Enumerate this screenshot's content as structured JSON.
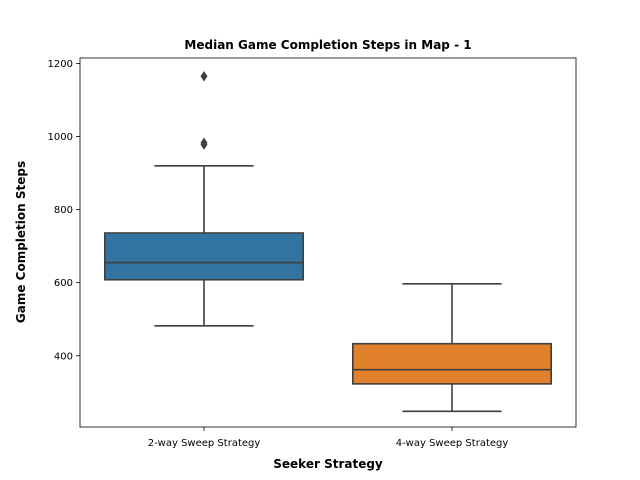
{
  "chart_data": {
    "type": "box",
    "title": "Median Game Completion Steps in Map - 1",
    "xlabel": "Seeker Strategy",
    "ylabel": "Game Completion Steps",
    "ylim": [
      205,
      1215
    ],
    "yticks": [
      400,
      600,
      800,
      1000,
      1200
    ],
    "grid": false,
    "categories": [
      "2-way Sweep Strategy",
      "4-way Sweep Strategy"
    ],
    "boxes": [
      {
        "category": "2-way Sweep Strategy",
        "color": "#3274a1",
        "whisker_low": 482,
        "q1": 608,
        "median": 655,
        "q3": 736,
        "whisker_high": 920,
        "outliers": [
          978,
          983,
          1165
        ]
      },
      {
        "category": "4-way Sweep Strategy",
        "color": "#e1812c",
        "whisker_low": 248,
        "q1": 323,
        "median": 362,
        "q3": 433,
        "whisker_high": 597,
        "outliers": []
      }
    ]
  }
}
